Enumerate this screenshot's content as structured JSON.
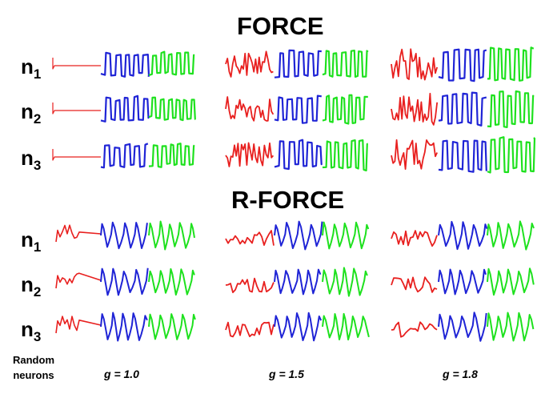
{
  "sections": [
    {
      "title": "FORCE"
    },
    {
      "title": "R-FORCE"
    }
  ],
  "neuron_labels": [
    {
      "base": "n",
      "index": "1"
    },
    {
      "base": "n",
      "index": "2"
    },
    {
      "base": "n",
      "index": "3"
    }
  ],
  "row_label_header": {
    "line1": "Random",
    "line2": "neurons"
  },
  "gain_labels": [
    "g = 1.0",
    "g = 1.5",
    "g = 1.8"
  ],
  "colors": {
    "pre_training": "#e8201f",
    "training": "#1f24d6",
    "testing": "#1ee11e"
  }
}
